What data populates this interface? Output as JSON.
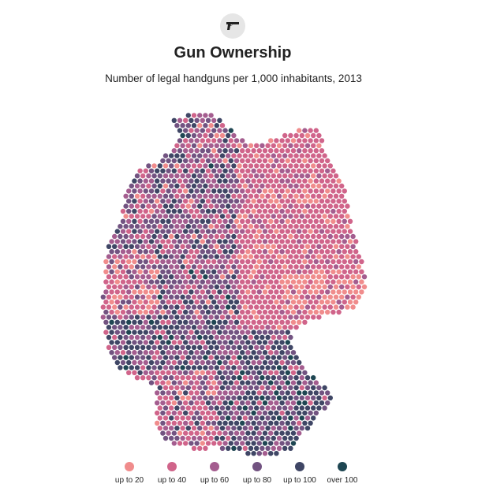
{
  "header": {
    "icon": "handgun-icon",
    "title": "Gun Ownership",
    "subtitle": "Number of legal handguns per 1,000 inhabitants, 2013"
  },
  "map": {
    "region": "Germany",
    "metric": "Legal handguns per 1,000 inhabitants",
    "year": 2013
  },
  "legend": [
    {
      "label": "up to 20",
      "color": "#f08c8c"
    },
    {
      "label": "up to 40",
      "color": "#d0648a"
    },
    {
      "label": "up to 60",
      "color": "#a45d8f"
    },
    {
      "label": "up to 80",
      "color": "#725381"
    },
    {
      "label": "up to 100",
      "color": "#3f4665"
    },
    {
      "label": "over 100",
      "color": "#1e4652"
    }
  ]
}
